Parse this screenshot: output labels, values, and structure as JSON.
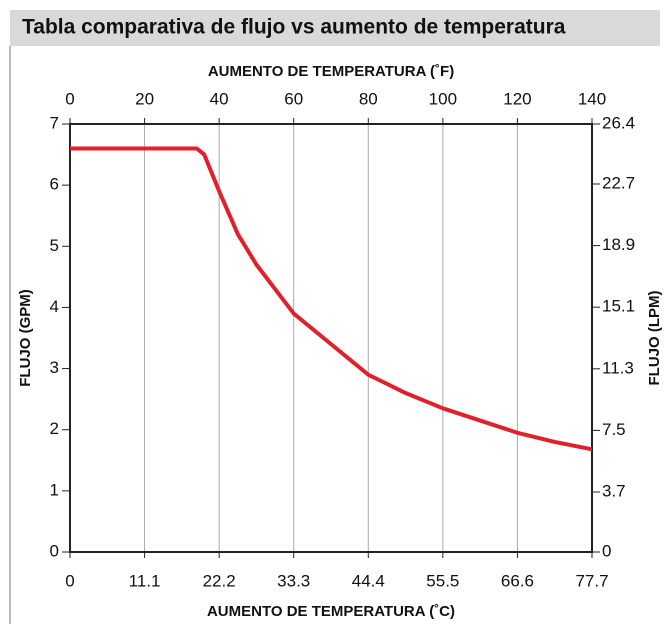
{
  "chart_data": {
    "type": "line",
    "title": "Tabla comparativa de flujo vs aumento de temperatura",
    "x_label_top": "AUMENTO DE TEMPERATURA (˚F)",
    "x_label_bottom": "AUMENTO DE TEMPERATURA (˚C)",
    "y_label": "FLUJO (GPM)",
    "y2_label": "FLUJO (LPM)",
    "x": [
      0,
      34,
      36,
      38,
      40,
      45,
      50,
      55,
      60,
      70,
      80,
      90,
      100,
      110,
      120,
      130,
      140
    ],
    "series": [
      {
        "name": "Flujo",
        "color": "#e0202a",
        "values": [
          6.6,
          6.6,
          6.5,
          6.2,
          5.9,
          5.2,
          4.7,
          4.3,
          3.9,
          3.4,
          2.9,
          2.6,
          2.35,
          2.15,
          1.95,
          1.8,
          1.68
        ]
      }
    ],
    "xlim": [
      0,
      140
    ],
    "xticks": [
      0,
      20,
      40,
      60,
      80,
      100,
      120,
      140
    ],
    "x2lim": [
      0,
      77.7
    ],
    "x2ticks": [
      0,
      11.1,
      22.2,
      33.3,
      44.4,
      55.5,
      66.6,
      77.7
    ],
    "ylim": [
      0,
      7
    ],
    "yticks": [
      0,
      1,
      2,
      3,
      4,
      5,
      6,
      7
    ],
    "y2lim": [
      0,
      26.4
    ],
    "y2ticks": [
      0,
      3.7,
      7.5,
      11.3,
      15.1,
      18.9,
      22.7,
      26.4
    ],
    "grid": "x"
  }
}
